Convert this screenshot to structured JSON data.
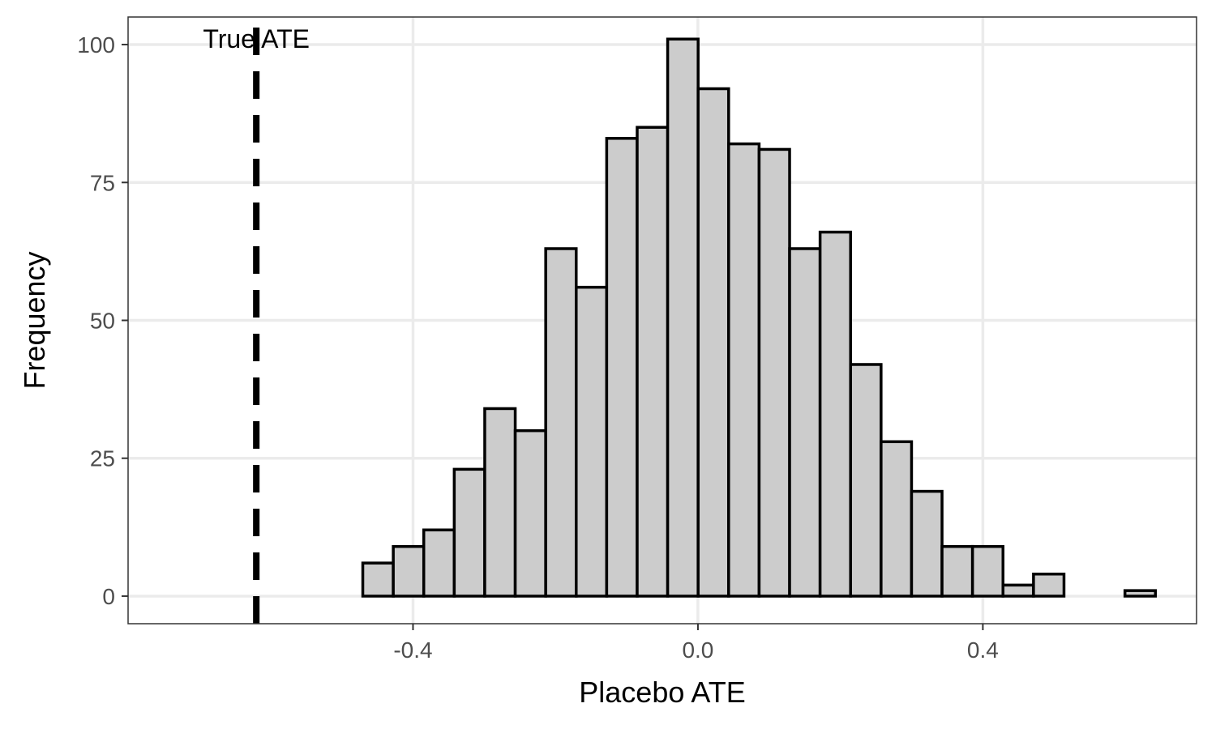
{
  "chart_data": {
    "type": "bar",
    "chart_kind": "histogram",
    "xlabel": "Placebo ATE",
    "ylabel": "Frequency",
    "xlim": [
      -0.8,
      0.7
    ],
    "ylim": [
      -5,
      105
    ],
    "x_ticks": [
      -0.4,
      0.0,
      0.4
    ],
    "x_tick_labels": [
      "-0.4",
      "0.0",
      "0.4"
    ],
    "y_ticks": [
      0,
      25,
      50,
      75,
      100
    ],
    "y_tick_labels": [
      "0",
      "25",
      "50",
      "75",
      "100"
    ],
    "grid": true,
    "bin_width": 0.0428,
    "bin_centers": [
      -0.6203,
      -0.5775,
      -0.5347,
      -0.4919,
      -0.4491,
      -0.4063,
      -0.3635,
      -0.3207,
      -0.2779,
      -0.2351,
      -0.1923,
      -0.1495,
      -0.1067,
      -0.0639,
      -0.0211,
      0.0217,
      0.0645,
      0.1073,
      0.1501,
      0.1929,
      0.2357,
      0.2785,
      0.3213,
      0.3641,
      0.4069,
      0.4497,
      0.4925,
      0.5353,
      0.5781,
      0.6209
    ],
    "values": [
      0,
      0,
      0,
      0,
      6,
      9,
      12,
      23,
      34,
      30,
      63,
      56,
      83,
      85,
      101,
      92,
      82,
      81,
      63,
      66,
      42,
      28,
      19,
      9,
      9,
      2,
      4,
      0,
      0,
      1
    ],
    "bar_fill": "#cccccc",
    "bar_outline": "#000000",
    "reference_line": {
      "x": -0.62,
      "label": "True ATE",
      "style": "dashed",
      "color": "#000000"
    }
  }
}
